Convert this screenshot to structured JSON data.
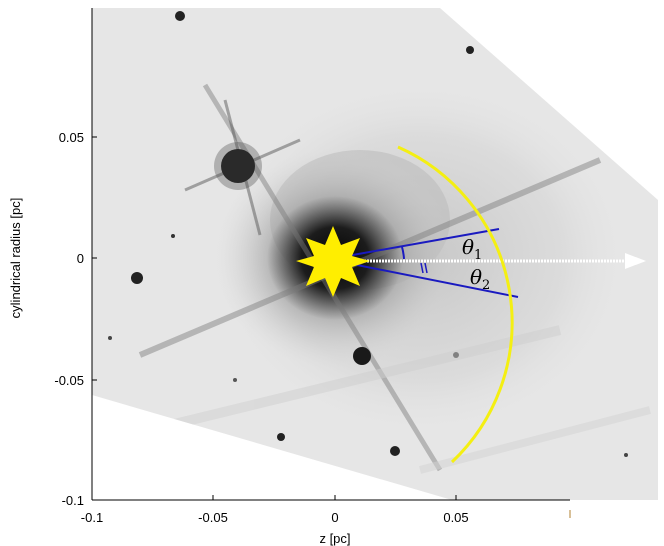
{
  "figure": {
    "x_axis": {
      "label": "z [pc]",
      "ticks": [
        "-0.1",
        "-0.05",
        "0",
        "0.05"
      ]
    },
    "y_axis": {
      "label": "cylindrical radius [pc]",
      "ticks": [
        "0.05",
        "0",
        "-0.05",
        "-0.1"
      ]
    },
    "annotations": {
      "theta1_symbol": "θ",
      "theta1_sub": "1",
      "theta2_symbol": "θ",
      "theta2_sub": "2"
    },
    "colors": {
      "arc": "#f4ef12",
      "star": "#ffee00",
      "angle_lines": "#1a1ac0",
      "axis_arrow": "#ffffff"
    },
    "icons": {
      "central_star": "eight-point-star-icon",
      "direction_arrow": "arrow-right-icon"
    }
  }
}
